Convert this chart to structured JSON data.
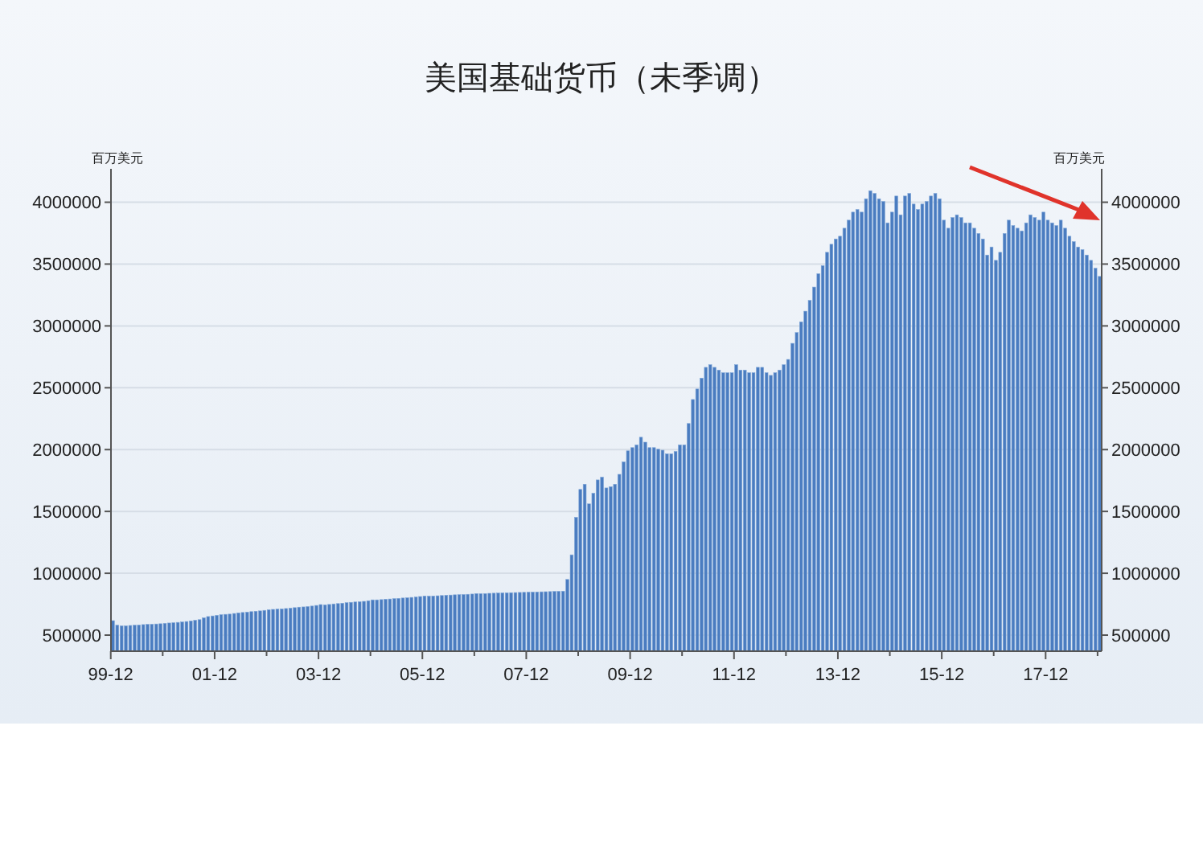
{
  "chart_data": {
    "type": "bar",
    "title": "美国基础货币（未季调）",
    "ylabel": "百万美元",
    "y2label": "百万美元",
    "categories": [
      "99-12",
      null,
      null,
      null,
      null,
      null,
      null,
      null,
      null,
      null,
      null,
      null,
      null,
      null,
      null,
      null,
      null,
      null,
      null,
      null,
      null,
      null,
      null,
      null,
      "01-12",
      null,
      null,
      null,
      null,
      null,
      null,
      null,
      null,
      null,
      null,
      null,
      null,
      null,
      null,
      null,
      null,
      null,
      null,
      null,
      null,
      null,
      null,
      null,
      "03-12",
      null,
      null,
      null,
      null,
      null,
      null,
      null,
      null,
      null,
      null,
      null,
      null,
      null,
      null,
      null,
      null,
      null,
      null,
      null,
      null,
      null,
      null,
      null,
      "05-12",
      null,
      null,
      null,
      null,
      null,
      null,
      null,
      null,
      null,
      null,
      null,
      null,
      null,
      null,
      null,
      null,
      null,
      null,
      null,
      null,
      null,
      null,
      null,
      "07-12",
      null,
      null,
      null,
      null,
      null,
      null,
      null,
      null,
      null,
      null,
      null,
      null,
      null,
      null,
      null,
      null,
      null,
      null,
      null,
      null,
      null,
      null,
      null,
      "09-12",
      null,
      null,
      null,
      null,
      null,
      null,
      null,
      null,
      null,
      null,
      null,
      null,
      null,
      null,
      null,
      null,
      null,
      null,
      null,
      null,
      null,
      null,
      null,
      "11-12",
      null,
      null,
      null,
      null,
      null,
      null,
      null,
      null,
      null,
      null,
      null,
      null,
      null,
      null,
      null,
      null,
      null,
      null,
      null,
      null,
      null,
      null,
      null,
      "13-12",
      null,
      null,
      null,
      null,
      null,
      null,
      null,
      null,
      null,
      null,
      null,
      null,
      null,
      null,
      null,
      null,
      null,
      null,
      null,
      null,
      null,
      null,
      null,
      "15-12",
      null,
      null,
      null,
      null,
      null,
      null,
      null,
      null,
      null,
      null,
      null,
      null,
      null,
      null,
      null,
      null,
      null,
      null,
      null,
      null,
      null,
      null,
      null,
      "17-12",
      null,
      null,
      null,
      null,
      null,
      null,
      null,
      null,
      null,
      null,
      null,
      null
    ],
    "values": [
      617000,
      580000,
      575000,
      575000,
      578000,
      580000,
      582000,
      585000,
      587000,
      588000,
      590000,
      592000,
      595000,
      598000,
      600000,
      603000,
      606000,
      610000,
      615000,
      620000,
      625000,
      640000,
      650000,
      655000,
      660000,
      665000,
      668000,
      670000,
      675000,
      680000,
      683000,
      686000,
      690000,
      693000,
      696000,
      700000,
      705000,
      708000,
      710000,
      712000,
      715000,
      718000,
      722000,
      726000,
      728000,
      731000,
      735000,
      740000,
      747000,
      745000,
      748000,
      752000,
      755000,
      758000,
      762000,
      765000,
      768000,
      770000,
      773000,
      778000,
      785000,
      785000,
      787000,
      790000,
      792000,
      795000,
      797000,
      800000,
      802000,
      805000,
      808000,
      812000,
      816000,
      815000,
      816000,
      818000,
      820000,
      822000,
      824000,
      826000,
      827000,
      828000,
      830000,
      832000,
      836000,
      835000,
      836000,
      838000,
      839000,
      840000,
      841000,
      842000,
      843000,
      844000,
      845000,
      846000,
      847000,
      848000,
      849000,
      850000,
      851000,
      852000,
      853000,
      854000,
      855000,
      950000,
      1149000,
      1452000,
      1678000,
      1720000,
      1561000,
      1647000,
      1755000,
      1777000,
      1690000,
      1700000,
      1720000,
      1800000,
      1900000,
      1990000,
      2016000,
      2038000,
      2100000,
      2060000,
      2016000,
      2016000,
      2003000,
      1995000,
      1965000,
      1965000,
      1985000,
      2038000,
      2038000,
      2211000,
      2405000,
      2490000,
      2578000,
      2665000,
      2686000,
      2665000,
      2643000,
      2621000,
      2621000,
      2621000,
      2686000,
      2643000,
      2643000,
      2621000,
      2621000,
      2665000,
      2665000,
      2621000,
      2600000,
      2621000,
      2643000,
      2686000,
      2729000,
      2859000,
      2946000,
      3033000,
      3119000,
      3206000,
      3314000,
      3422000,
      3487000,
      3595000,
      3660000,
      3703000,
      3725000,
      3790000,
      3855000,
      3920000,
      3941000,
      3920000,
      4028000,
      4093000,
      4071000,
      4028000,
      4006000,
      3833000,
      3920000,
      4050000,
      3898000,
      4050000,
      4071000,
      3985000,
      3941000,
      3985000,
      4006000,
      4050000,
      4071000,
      4028000,
      3855000,
      3790000,
      3876000,
      3898000,
      3876000,
      3833000,
      3833000,
      3790000,
      3747000,
      3703000,
      3573000,
      3638000,
      3530000,
      3595000,
      3747000,
      3855000,
      3811000,
      3790000,
      3768000,
      3833000,
      3898000,
      3876000,
      3855000,
      3920000,
      3855000,
      3833000,
      3811000,
      3855000,
      3790000,
      3725000,
      3681000,
      3638000,
      3616000,
      3573000,
      3530000,
      3466000,
      3400000
    ],
    "color": "#4a7cc0",
    "ylim": [
      370000,
      4270000
    ],
    "yticks": [
      500000,
      1000000,
      1500000,
      2000000,
      2500000,
      3000000,
      3500000,
      4000000
    ],
    "y2lim": [
      370000,
      4270000
    ],
    "y2ticks": [
      500000,
      1000000,
      1500000,
      2000000,
      2500000,
      3000000,
      3500000,
      4000000
    ],
    "grid": "y"
  }
}
